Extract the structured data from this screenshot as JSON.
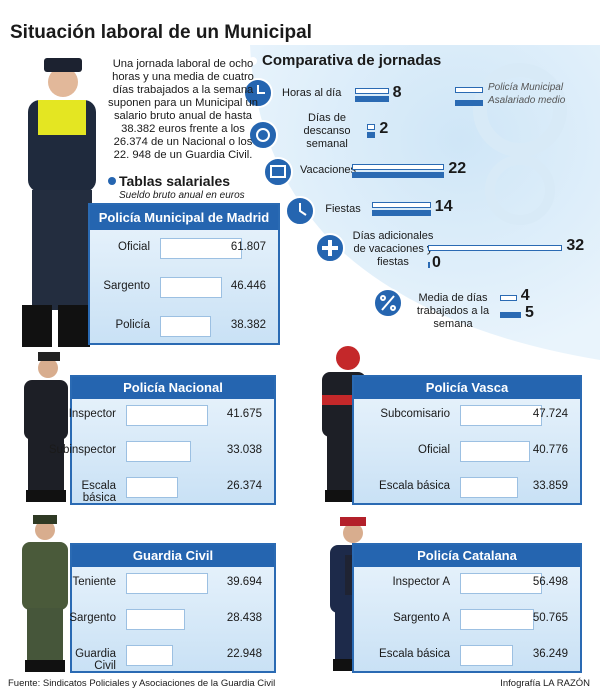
{
  "title": "Situación laboral de un Municipal",
  "intro": "Una jornada laboral de ocho horas y una media de cuatro días trabajados a la semana suponen para un Municipal un salario bruto anual de hasta 38.382 euros frente a los 26.374 de un Nacional o los 22. 948 de un Guardia Civil.",
  "comparison": {
    "title": "Comparativa de jornadas",
    "series": [
      {
        "name": "Policía Municipal",
        "color": "#ffffff"
      },
      {
        "name": "Asalariado medio",
        "color": "#2a6ab3"
      }
    ],
    "rows": [
      {
        "label": "Horas al día",
        "values": [
          8,
          8
        ]
      },
      {
        "label": "Días de descanso semanal",
        "values": [
          2,
          2
        ]
      },
      {
        "label": "Vacaciones",
        "values": [
          22,
          22
        ]
      },
      {
        "label": "Fiestas",
        "values": [
          14,
          14
        ]
      },
      {
        "label": "Días adicionales de vacaciones y fiestas",
        "values": [
          32,
          0
        ]
      },
      {
        "label": "Media de días trabajados a la semana",
        "values": [
          4,
          5
        ]
      }
    ]
  },
  "salaries": {
    "title": "Tablas salariales",
    "subtitle": "Sueldo bruto anual en euros",
    "groups": [
      {
        "name": "Policía Municipal de Madrid",
        "rows": [
          {
            "rank": "Oficial",
            "value": 61807,
            "label": "61.807"
          },
          {
            "rank": "Sargento",
            "value": 46446,
            "label": "46.446"
          },
          {
            "rank": "Policía",
            "value": 38382,
            "label": "38.382"
          }
        ]
      },
      {
        "name": "Policía Nacional",
        "rows": [
          {
            "rank": "Inspector",
            "value": 41675,
            "label": "41.675"
          },
          {
            "rank": "Subinspector",
            "value": 33038,
            "label": "33.038"
          },
          {
            "rank": "Escala básica",
            "value": 26374,
            "label": "26.374"
          }
        ]
      },
      {
        "name": "Policía Vasca",
        "rows": [
          {
            "rank": "Subcomisario",
            "value": 47724,
            "label": "47.724"
          },
          {
            "rank": "Oficial",
            "value": 40776,
            "label": "40.776"
          },
          {
            "rank": "Escala básica",
            "value": 33859,
            "label": "33.859"
          }
        ]
      },
      {
        "name": "Guardia Civil",
        "rows": [
          {
            "rank": "Teniente",
            "value": 39694,
            "label": "39.694"
          },
          {
            "rank": "Sargento",
            "value": 28438,
            "label": "28.438"
          },
          {
            "rank": "Guardia Civil",
            "value": 22948,
            "label": "22.948"
          }
        ]
      },
      {
        "name": "Policía Catalana",
        "rows": [
          {
            "rank": "Inspector A",
            "value": 56498,
            "label": "56.498"
          },
          {
            "rank": "Sargento A",
            "value": 50765,
            "label": "50.765"
          },
          {
            "rank": "Escala básica",
            "value": 36249,
            "label": "36.249"
          }
        ]
      }
    ]
  },
  "footer": {
    "source": "Fuente: Sindicatos Policiales y Asociaciones de la Guardia Civil",
    "credit": "Infografía LA RAZÓN"
  }
}
